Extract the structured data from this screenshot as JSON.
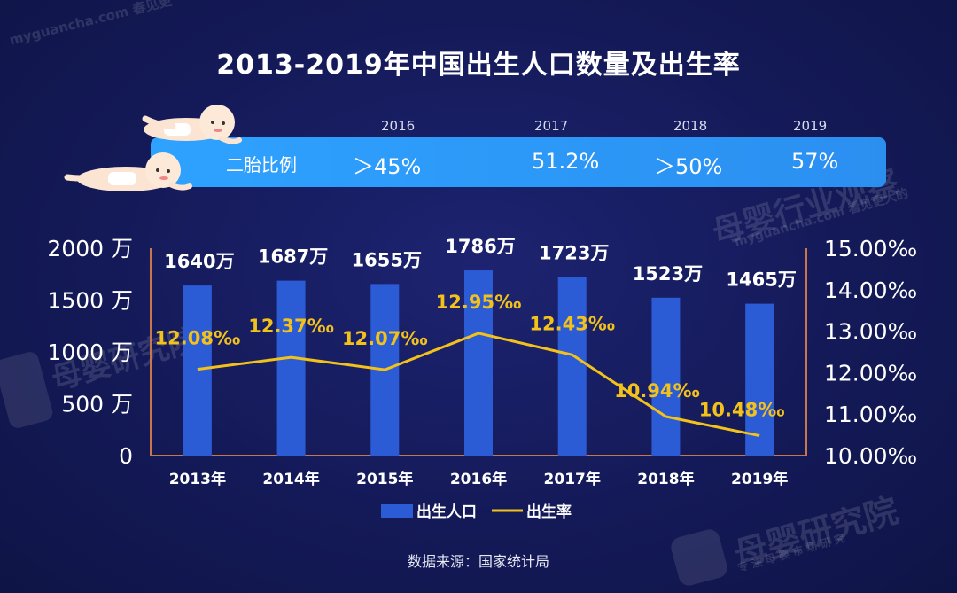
{
  "watermarks": {
    "top_left_url": "myguancha.com 春见更",
    "right_brand": "母婴行业观察",
    "right_url": "myguancha.com 看见更大的",
    "left_brand": "母婴研究院",
    "bottom_brand": "母婴研究院",
    "bottom_sub": "专 注 母 婴 市 场 研 究"
  },
  "banner": {
    "label": "二胎比例",
    "years": [
      "2016",
      "2017",
      "2018",
      "2019"
    ],
    "values": [
      "＞45%",
      "51.2%",
      "＞50%",
      "57%"
    ]
  },
  "source": "数据来源：国家统计局",
  "colors": {
    "bar": "#2c5bd6",
    "line": "#f2c21b",
    "axis_frame": "#c9774a"
  },
  "chart_data": {
    "type": "bar",
    "title": "2013-2019年中国出生人口数量及出生率",
    "categories": [
      "2013年",
      "2014年",
      "2015年",
      "2016年",
      "2017年",
      "2018年",
      "2019年"
    ],
    "series": [
      {
        "name": "出生人口",
        "type": "bar",
        "axis": "left",
        "values": [
          1640,
          1687,
          1655,
          1786,
          1723,
          1523,
          1465
        ],
        "labels": [
          "1640万",
          "1687万",
          "1655万",
          "1786万",
          "1723万",
          "1523万",
          "1465万"
        ]
      },
      {
        "name": "出生率",
        "type": "line",
        "axis": "right",
        "values": [
          12.08,
          12.37,
          12.07,
          12.95,
          12.43,
          10.94,
          10.48
        ],
        "labels": [
          "12.08‰",
          "12.37‰",
          "12.07‰",
          "12.95‰",
          "12.43‰",
          "10.94‰",
          "10.48‰"
        ]
      }
    ],
    "y_left": {
      "ylim": [
        0,
        2000
      ],
      "ticks": [
        "0",
        "500 万",
        "1000 万",
        "1500 万",
        "2000 万"
      ]
    },
    "y_right": {
      "ylim": [
        10,
        15
      ],
      "ticks": [
        "10.00‰",
        "11.00‰",
        "12.00‰",
        "13.00‰",
        "14.00‰",
        "15.00‰"
      ]
    },
    "legend": [
      "出生人口",
      "出生率"
    ],
    "legend_position": "bottom-center",
    "grid": false
  }
}
